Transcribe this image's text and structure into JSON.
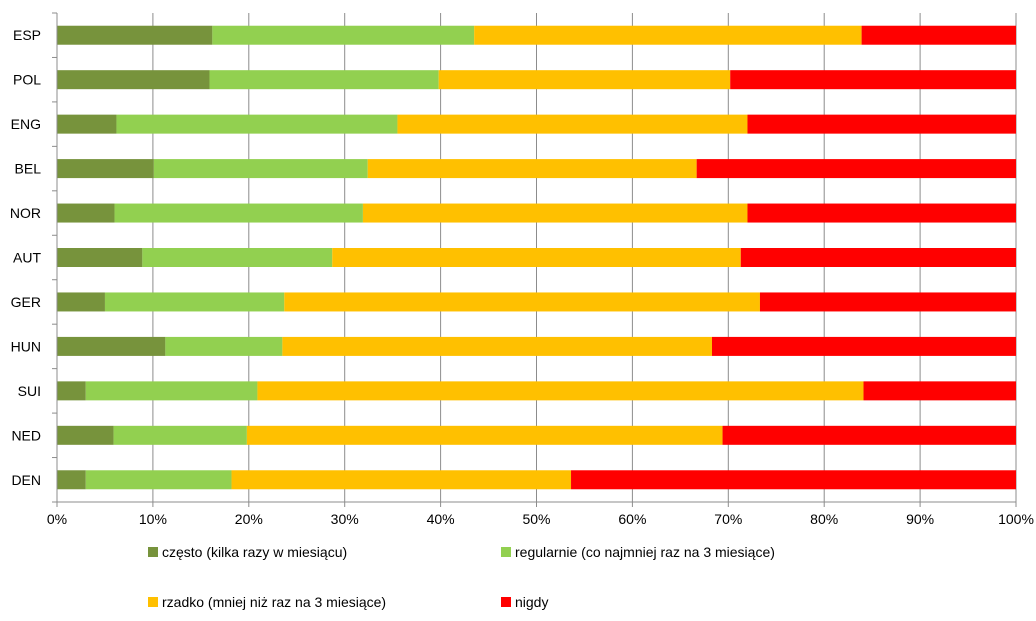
{
  "chart_data": {
    "type": "bar",
    "orientation": "horizontal",
    "stacked": "percent",
    "categories": [
      "ESP",
      "POL",
      "ENG",
      "BEL",
      "NOR",
      "AUT",
      "GER",
      "HUN",
      "SUI",
      "NED",
      "DEN"
    ],
    "series": [
      {
        "name": "często (kilka razy w miesiącu)",
        "color": "#77933C",
        "values": [
          16.2,
          15.9,
          6.2,
          10.1,
          6.0,
          8.9,
          5.0,
          11.3,
          3.0,
          5.9,
          3.0
        ]
      },
      {
        "name": "regularnie (co najmniej raz na 3 miesiące)",
        "color": "#92D050",
        "values": [
          27.3,
          23.9,
          29.3,
          22.3,
          25.9,
          19.8,
          18.7,
          12.2,
          17.9,
          13.9,
          15.2
        ]
      },
      {
        "name": "rzadko (mniej niż raz na 3 miesiące)",
        "color": "#FFC000",
        "values": [
          40.4,
          30.4,
          36.5,
          34.3,
          40.1,
          42.6,
          49.6,
          44.8,
          63.2,
          49.6,
          35.4
        ]
      },
      {
        "name": "nigdy",
        "color": "#FF0000",
        "values": [
          16.1,
          29.8,
          28.0,
          33.3,
          28.0,
          28.7,
          26.7,
          31.7,
          15.9,
          30.6,
          46.4
        ]
      }
    ],
    "x_ticks": [
      "0%",
      "10%",
      "20%",
      "30%",
      "40%",
      "50%",
      "60%",
      "70%",
      "80%",
      "90%",
      "100%"
    ],
    "xlim": [
      0,
      100
    ],
    "grid": "vertical",
    "legend_position": "bottom",
    "title": "",
    "xlabel": "",
    "ylabel": ""
  }
}
